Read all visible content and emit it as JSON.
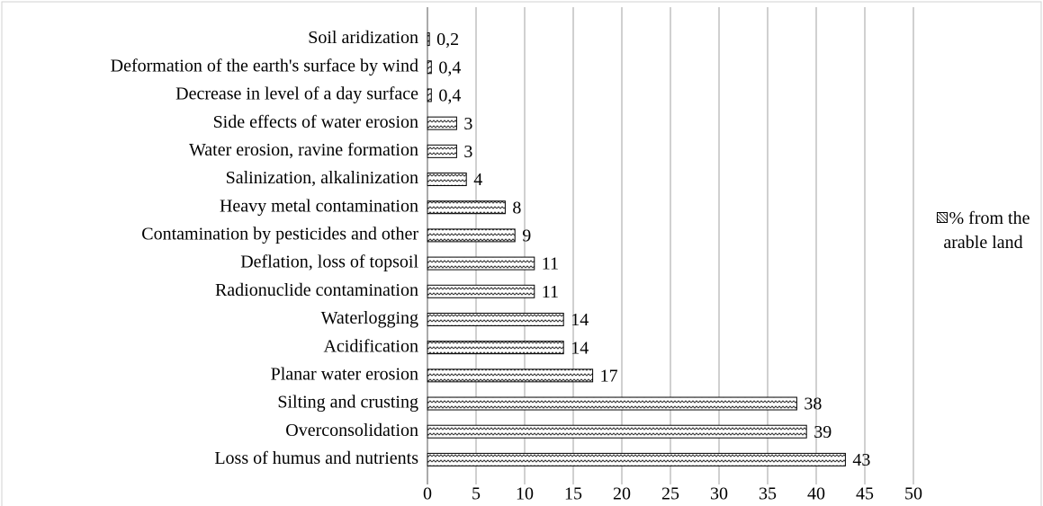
{
  "chart_data": {
    "type": "bar",
    "orientation": "horizontal",
    "categories": [
      "Soil aridization",
      "Deformation of the earth's surface by wind",
      "Decrease in level of a day surface",
      "Side effects of water erosion",
      "Water erosion, ravine formation",
      "Salinization, alkalinization",
      "Heavy metal contamination",
      "Contamination by pesticides and other",
      "Deflation, loss of topsoil",
      "Radionuclide contamination",
      "Waterlogging",
      "Acidification",
      "Planar water erosion",
      "Silting and crusting",
      "Overconsolidation",
      "Loss of humus and nutrients"
    ],
    "series": [
      {
        "name": "% from the arable land",
        "color": "#333333",
        "values": [
          0.2,
          0.4,
          0.4,
          3,
          3,
          4,
          8,
          9,
          11,
          11,
          14,
          14,
          17,
          38,
          39,
          43
        ],
        "value_labels": [
          "0,2",
          "0,4",
          "0,4",
          "3",
          "3",
          "4",
          "8",
          "9",
          "11",
          "11",
          "14",
          "14",
          "17",
          "38",
          "39",
          "43"
        ]
      }
    ],
    "xlim": [
      0,
      50
    ],
    "xticks": [
      0,
      5,
      10,
      15,
      20,
      25,
      30,
      35,
      40,
      45,
      50
    ],
    "grid": true,
    "legend": "right"
  }
}
